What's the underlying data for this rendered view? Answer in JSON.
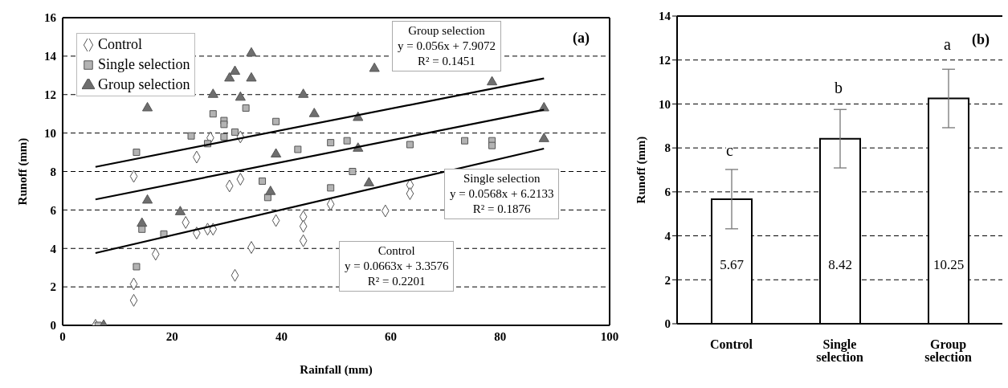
{
  "chart_data": [
    {
      "type": "scatter",
      "xlabel": "Rainfall (mm)",
      "ylabel": "Runoff (mm)",
      "xlim": [
        0,
        100
      ],
      "xticks": [
        0,
        20,
        40,
        60,
        80,
        100
      ],
      "ylim": [
        0,
        16
      ],
      "yticks": [
        0,
        2,
        4,
        6,
        8,
        10,
        12,
        14,
        16
      ],
      "grid": "y",
      "legend": "top left",
      "series": [
        {
          "name": "Control",
          "type": "scatter",
          "marker": "diamond",
          "color": "#ffffff",
          "x": [
            6,
            13,
            13,
            13,
            17,
            22.5,
            24.5,
            24.5,
            26.5,
            27.5,
            27,
            30.5,
            31.5,
            32.5,
            32.5,
            34.5,
            39,
            44,
            44,
            44,
            49,
            59,
            63.5,
            63.5
          ],
          "values": [
            0,
            1.3,
            2.15,
            7.75,
            3.7,
            5.35,
            4.8,
            8.75,
            5.0,
            5.0,
            9.75,
            7.25,
            2.6,
            7.6,
            9.8,
            4.05,
            5.45,
            5.65,
            5.15,
            4.4,
            6.3,
            5.95,
            7.3,
            6.85
          ]
        },
        {
          "name": "Single selection",
          "type": "scatter",
          "marker": "square",
          "color": "#b3b3b3",
          "x": [
            6.5,
            13.5,
            13.5,
            14.5,
            18.5,
            23.5,
            26.5,
            27.5,
            29.5,
            29.5,
            29.5,
            31.5,
            33.5,
            36.5,
            37.5,
            39,
            43,
            49,
            52,
            53,
            49,
            63.5,
            73.5,
            78.5,
            78.5
          ],
          "values": [
            0,
            9.0,
            3.05,
            5.0,
            4.75,
            9.85,
            9.45,
            11.0,
            10.65,
            10.45,
            9.8,
            10.05,
            11.3,
            7.5,
            6.65,
            10.6,
            9.15,
            9.5,
            9.6,
            8.0,
            7.15,
            9.4,
            9.6,
            9.6,
            9.35
          ]
        },
        {
          "name": "Group selection",
          "type": "scatter",
          "marker": "triangle",
          "color": "#6e6e6e",
          "x": [
            7.5,
            15.5,
            15.5,
            14.5,
            21.5,
            27.5,
            30.5,
            31.5,
            32.5,
            34.5,
            34.5,
            39,
            38,
            44,
            46,
            54,
            54,
            56,
            57,
            78.5,
            88,
            88
          ],
          "values": [
            0,
            11.3,
            6.5,
            5.3,
            5.9,
            12.0,
            12.85,
            13.2,
            11.85,
            14.15,
            12.85,
            8.9,
            6.95,
            12.0,
            11.0,
            10.8,
            9.2,
            7.4,
            13.35,
            12.65,
            11.3,
            9.7
          ]
        },
        {
          "type": "line",
          "marker": "none",
          "color": "#000000",
          "x": [
            6,
            88
          ],
          "values": [
            8.24,
            12.84
          ]
        },
        {
          "type": "line",
          "marker": "none",
          "color": "#000000",
          "x": [
            6,
            88
          ],
          "values": [
            6.55,
            11.21
          ]
        },
        {
          "type": "line",
          "marker": "none",
          "color": "#000000",
          "x": [
            6,
            88
          ],
          "values": [
            3.76,
            9.19
          ]
        }
      ],
      "annotations": [
        "(a)",
        "Group selection\ny = 0.056x + 7.9072\nR² = 0.1451",
        "Single selection\ny = 0.0568x + 6.2133\nR² = 0.1876",
        "Control\ny = 0.0663x + 3.3576\nR² = 0.2201"
      ]
    },
    {
      "type": "bar",
      "ylabel": "Runoff (mm)",
      "categories": [
        "Control",
        "Single selection",
        "Group selection"
      ],
      "values": [
        5.67,
        8.42,
        10.25
      ],
      "color": "#ffffff",
      "errors": [
        1.35,
        1.33,
        1.33
      ],
      "data_labels": true,
      "ylim": [
        0,
        14
      ],
      "yticks": [
        0,
        2,
        4,
        6,
        8,
        10,
        12,
        14
      ],
      "grid": "y",
      "annotations": [
        "(b)",
        "c",
        "b",
        "a"
      ]
    }
  ]
}
